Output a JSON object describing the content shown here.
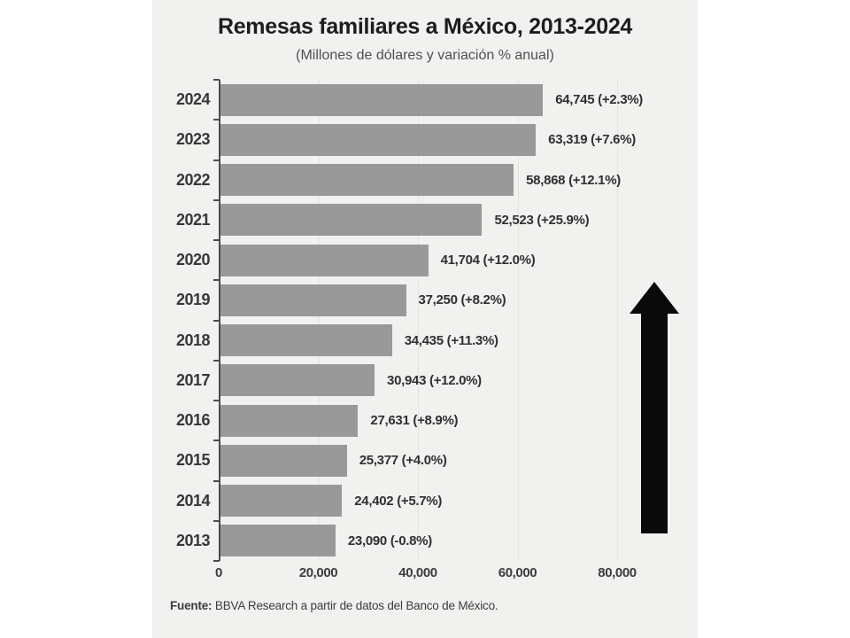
{
  "chart_data": {
    "type": "bar",
    "orientation": "horizontal",
    "title": "Remesas familiares a México, 2013-2024",
    "subtitle": "(Millones de dólares y variación % anual)",
    "xlabel": "",
    "ylabel": "",
    "xlim": [
      0,
      80000
    ],
    "x_ticks": [
      "0",
      "20,000",
      "40,000",
      "60,000",
      "80,000"
    ],
    "grid": true,
    "legend": false,
    "bar_color": "#999999",
    "rows": [
      {
        "year": "2024",
        "value": 64745,
        "label": "64,745 (+2.3%)"
      },
      {
        "year": "2023",
        "value": 63319,
        "label": "63,319 (+7.6%)"
      },
      {
        "year": "2022",
        "value": 58868,
        "label": "58,868 (+12.1%)"
      },
      {
        "year": "2021",
        "value": 52523,
        "label": "52,523 (+25.9%)"
      },
      {
        "year": "2020",
        "value": 41704,
        "label": "41,704 (+12.0%)"
      },
      {
        "year": "2019",
        "value": 37250,
        "label": "37,250 (+8.2%)"
      },
      {
        "year": "2018",
        "value": 34435,
        "label": "34,435 (+11.3%)"
      },
      {
        "year": "2017",
        "value": 30943,
        "label": "30,943 (+12.0%)"
      },
      {
        "year": "2016",
        "value": 27631,
        "label": "27,631 (+8.9%)"
      },
      {
        "year": "2015",
        "value": 25377,
        "label": "25,377 (+4.0%)"
      },
      {
        "year": "2014",
        "value": 24402,
        "label": "24,402 (+5.7%)"
      },
      {
        "year": "2013",
        "value": 23090,
        "label": "23,090 (-0.8%)"
      }
    ],
    "annotations": [
      {
        "name": "up-arrow",
        "meaning": "upward trend indicator",
        "color": "#0a0a0a"
      }
    ],
    "source_label": "Fuente:",
    "source_text": " BBVA Research a partir de datos del Banco de México."
  }
}
